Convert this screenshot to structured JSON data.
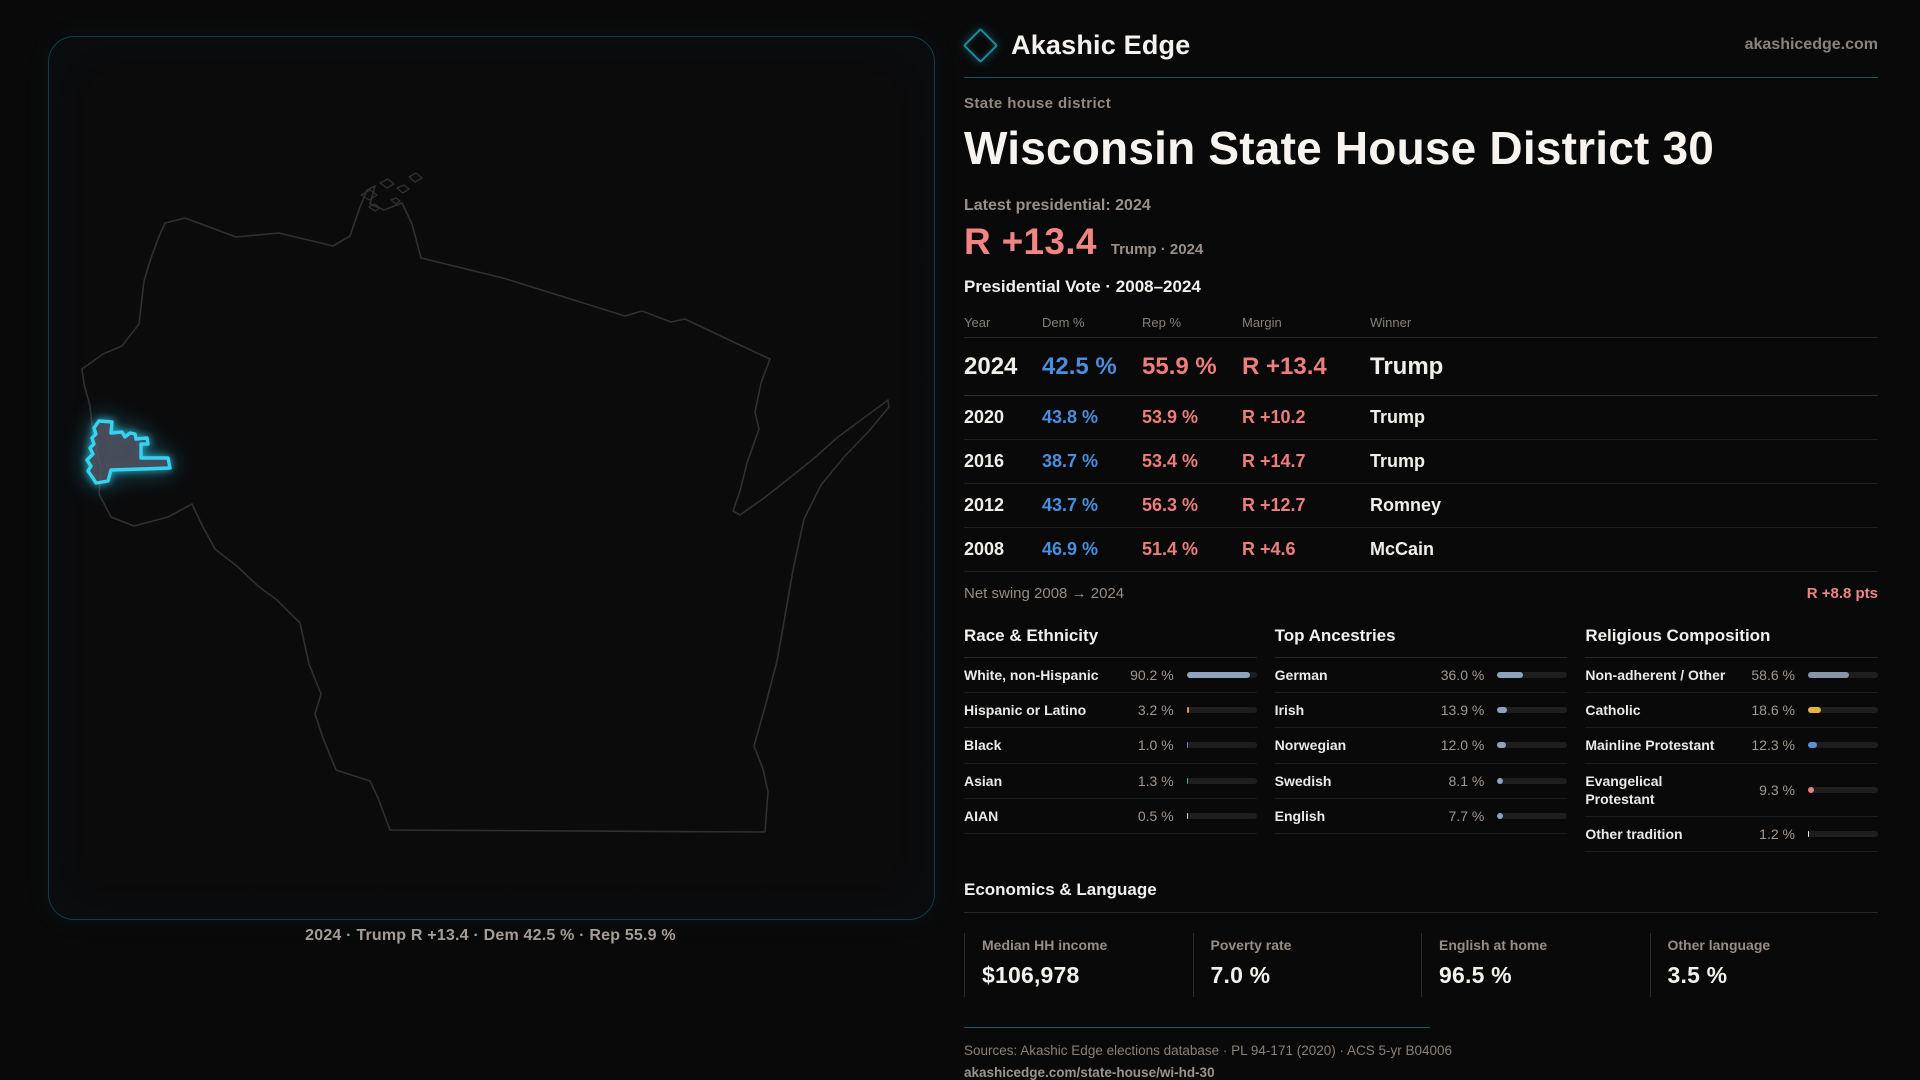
{
  "brand": {
    "name": "Akashic Edge",
    "domain": "akashicedge.com",
    "accent_teal": "#35d3f2"
  },
  "page": {
    "kicker": "State house district",
    "title": "Wisconsin State House District 30"
  },
  "latest": {
    "label": "Latest presidential: 2024",
    "margin": "R +13.4",
    "detail": "Trump · 2024",
    "margin_color": "#f28484"
  },
  "vote_table": {
    "title": "Presidential Vote · 2008–2024",
    "columns": [
      "Year",
      "Dem %",
      "Rep %",
      "Margin",
      "Winner"
    ],
    "rows": [
      {
        "year": "2024",
        "dem": "42.5 %",
        "rep": "55.9 %",
        "margin": "R +13.4",
        "winner": "Trump",
        "emphasis": true
      },
      {
        "year": "2020",
        "dem": "43.8 %",
        "rep": "53.9 %",
        "margin": "R +10.2",
        "winner": "Trump",
        "emphasis": false
      },
      {
        "year": "2016",
        "dem": "38.7 %",
        "rep": "53.4 %",
        "margin": "R +14.7",
        "winner": "Trump",
        "emphasis": false
      },
      {
        "year": "2012",
        "dem": "43.7 %",
        "rep": "56.3 %",
        "margin": "R +12.7",
        "winner": "Romney",
        "emphasis": false
      },
      {
        "year": "2008",
        "dem": "46.9 %",
        "rep": "51.4 %",
        "margin": "R +4.6",
        "winner": "McCain",
        "emphasis": false
      }
    ],
    "dem_color": "#4a8edf",
    "rep_color": "#ee7e7e"
  },
  "net_swing": {
    "label": "Net swing 2008 → 2024",
    "value": "R +8.8 pts"
  },
  "demographics": {
    "sections": [
      {
        "title": "Race & Ethnicity",
        "rows": [
          {
            "label": "White, non-Hispanic",
            "value": "90.2 %",
            "pct": 90.2,
            "color": "#8ea3c0"
          },
          {
            "label": "Hispanic or Latino",
            "value": "3.2 %",
            "pct": 3.2,
            "color": "#e59a28"
          },
          {
            "label": "Black",
            "value": "1.0 %",
            "pct": 1.0,
            "color": "#8a6fe8"
          },
          {
            "label": "Asian",
            "value": "1.3 %",
            "pct": 1.3,
            "color": "#2eb872"
          },
          {
            "label": "AIAN",
            "value": "0.5 %",
            "pct": 0.5,
            "color": "#cfcfcf"
          }
        ]
      },
      {
        "title": "Top Ancestries",
        "rows": [
          {
            "label": "German",
            "value": "36.0 %",
            "pct": 36.0,
            "color": "#8ea3c0"
          },
          {
            "label": "Irish",
            "value": "13.9 %",
            "pct": 13.9,
            "color": "#8ea3c0"
          },
          {
            "label": "Norwegian",
            "value": "12.0 %",
            "pct": 12.0,
            "color": "#8ea3c0"
          },
          {
            "label": "Swedish",
            "value": "8.1 %",
            "pct": 8.1,
            "color": "#8ea3c0"
          },
          {
            "label": "English",
            "value": "7.7 %",
            "pct": 7.7,
            "color": "#8ea3c0"
          }
        ]
      },
      {
        "title": "Religious Composition",
        "rows": [
          {
            "label": "Non-adherent / Other",
            "value": "58.6 %",
            "pct": 58.6,
            "color": "#8795a8"
          },
          {
            "label": "Catholic",
            "value": "18.6 %",
            "pct": 18.6,
            "color": "#e3b53d"
          },
          {
            "label": "Mainline Protestant",
            "value": "12.3 %",
            "pct": 12.3,
            "color": "#5b8fd9"
          },
          {
            "label": "Evangelical Protestant",
            "value": "9.3 %",
            "pct": 9.3,
            "color": "#e58080"
          },
          {
            "label": "Other tradition",
            "value": "1.2 %",
            "pct": 1.2,
            "color": "#e8e8e8"
          }
        ]
      }
    ]
  },
  "economics": {
    "title": "Economics & Language",
    "stats": [
      {
        "label": "Median HH income",
        "value": "$106,978"
      },
      {
        "label": "Poverty rate",
        "value": "7.0 %"
      },
      {
        "label": "English at home",
        "value": "96.5 %"
      },
      {
        "label": "Other language",
        "value": "3.5 %"
      }
    ]
  },
  "footer": {
    "sources": "Sources: Akashic Edge elections database · PL 94-171 (2020) · ACS 5-yr B04006",
    "permalink": "akashicedge.com/state-house/wi-hd-30"
  },
  "map": {
    "caption": "2024 · Trump R +13.4 · Dem 42.5 % · Rep 55.9 %",
    "state_name": "Wisconsin"
  }
}
